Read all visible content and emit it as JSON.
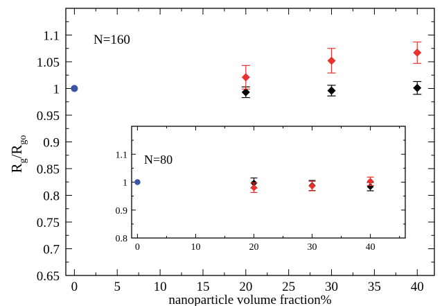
{
  "chart_data": [
    {
      "type": "scatter",
      "xlabel": "nanoparticle volume fraction%",
      "ylabel": "R",
      "ylabel_sub": "g",
      "ylabel_mid": "/R",
      "ylabel_sub2": "go",
      "annotation": "N=160",
      "xlim": [
        -1,
        42
      ],
      "ylim": [
        0.65,
        1.15
      ],
      "xticks": [
        0,
        5,
        10,
        15,
        20,
        25,
        30,
        35,
        40
      ],
      "yticks": [
        0.65,
        0.7,
        0.75,
        0.8,
        0.85,
        0.9,
        0.95,
        1,
        1.05,
        1.1
      ],
      "ytick_labels": [
        "0.65",
        "0.7",
        "0.75",
        "0.8",
        "0.85",
        "0.9",
        "0.95",
        "1",
        "1.05",
        "1.1"
      ],
      "colors": {
        "reference": "#3a55a4",
        "black": "#000000",
        "red": "#e8322b"
      },
      "series": [
        {
          "marker": "circle",
          "color": "reference",
          "x": [
            0
          ],
          "y": [
            1.0
          ],
          "err": [
            0
          ]
        },
        {
          "marker": "diamond",
          "color": "black",
          "x": [
            20,
            30,
            40
          ],
          "y": [
            0.993,
            0.996,
            1.001
          ],
          "err": [
            0.01,
            0.01,
            0.012
          ]
        },
        {
          "marker": "diamond",
          "color": "red",
          "x": [
            20,
            30,
            40
          ],
          "y": [
            1.021,
            1.052,
            1.067
          ],
          "err": [
            0.022,
            0.023,
            0.02
          ]
        }
      ]
    },
    {
      "type": "scatter",
      "annotation": "N=80",
      "xlim": [
        -1,
        46
      ],
      "ylim": [
        0.8,
        1.2
      ],
      "xticks": [
        0,
        10,
        20,
        30,
        40
      ],
      "yticks": [
        0.8,
        0.9,
        1,
        1.1
      ],
      "ytick_labels": [
        "0.8",
        "0.9",
        "1",
        "1.1"
      ],
      "series": [
        {
          "marker": "circle",
          "color": "reference",
          "x": [
            0
          ],
          "y": [
            1.0
          ],
          "err": [
            0
          ]
        },
        {
          "marker": "diamond",
          "color": "black",
          "x": [
            20,
            30,
            40
          ],
          "y": [
            0.997,
            0.988,
            0.984
          ],
          "err": [
            0.018,
            0.018,
            0.015
          ]
        },
        {
          "marker": "diamond",
          "color": "red",
          "x": [
            20,
            30,
            40
          ],
          "y": [
            0.98,
            0.986,
            1.003
          ],
          "err": [
            0.017,
            0.017,
            0.015
          ]
        }
      ]
    }
  ]
}
